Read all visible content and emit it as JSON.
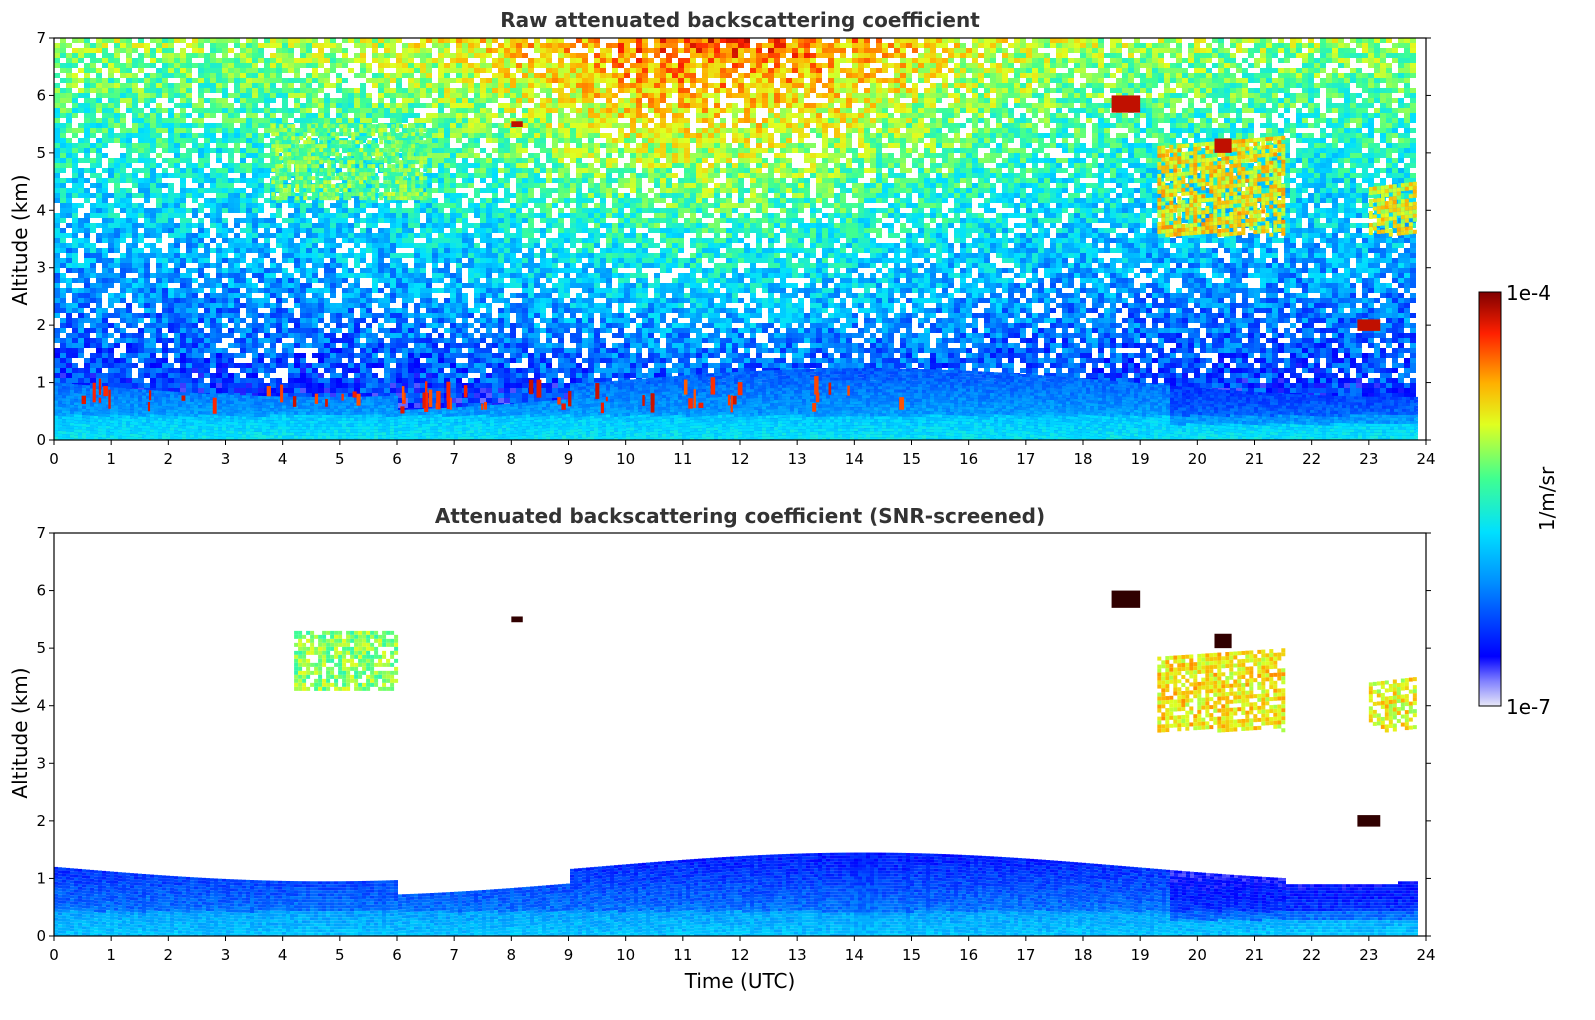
{
  "chart_data": [
    {
      "type": "heatmap",
      "title": "Raw attenuated backscattering coefficient",
      "xlabel": "",
      "ylabel": "Altitude (km)",
      "xlim": [
        0,
        24
      ],
      "ylim": [
        0,
        7
      ],
      "xticks": [
        0,
        1,
        2,
        3,
        4,
        5,
        6,
        7,
        8,
        9,
        10,
        11,
        12,
        13,
        14,
        15,
        16,
        17,
        18,
        19,
        20,
        21,
        22,
        23,
        24
      ],
      "yticks": [
        0,
        1,
        2,
        3,
        4,
        5,
        6,
        7
      ],
      "data_extent_x": [
        0,
        23.8
      ],
      "screening": "none",
      "features": [
        {
          "kind": "boundary-layer",
          "x": [
            0,
            23.8
          ],
          "y": [
            0,
            1.0
          ],
          "level": 0.38
        },
        {
          "kind": "aerosol-layer",
          "x": [
            3.8,
            6.5
          ],
          "y": [
            4.2,
            5.5
          ],
          "level": 0.58
        },
        {
          "kind": "cirrus",
          "x": [
            19.3,
            21.5
          ],
          "y": [
            3.6,
            5.3
          ],
          "level": 0.72
        },
        {
          "kind": "cirrus",
          "x": [
            23.0,
            23.8
          ],
          "y": [
            3.6,
            4.5
          ],
          "level": 0.7
        },
        {
          "kind": "cloud",
          "x": [
            8.0,
            8.2
          ],
          "y": [
            5.45,
            5.55
          ],
          "level": 0.95
        },
        {
          "kind": "cloud",
          "x": [
            18.5,
            19.0
          ],
          "y": [
            5.7,
            6.0
          ],
          "level": 0.95
        },
        {
          "kind": "cloud",
          "x": [
            20.3,
            20.6
          ],
          "y": [
            5.0,
            5.25
          ],
          "level": 0.95
        },
        {
          "kind": "cloud",
          "x": [
            22.8,
            23.2
          ],
          "y": [
            1.9,
            2.1
          ],
          "level": 0.95
        },
        {
          "kind": "low-cloud",
          "x": [
            0.2,
            14.8
          ],
          "y": [
            0.4,
            1.5
          ],
          "level": 0.95
        }
      ]
    },
    {
      "type": "heatmap",
      "title": "Attenuated backscattering coefficient (SNR-screened)",
      "xlabel": "Time (UTC)",
      "ylabel": "Altitude (km)",
      "xlim": [
        0,
        24
      ],
      "ylim": [
        0,
        7
      ],
      "xticks": [
        0,
        1,
        2,
        3,
        4,
        5,
        6,
        7,
        8,
        9,
        10,
        11,
        12,
        13,
        14,
        15,
        16,
        17,
        18,
        19,
        20,
        21,
        22,
        23,
        24
      ],
      "yticks": [
        0,
        1,
        2,
        3,
        4,
        5,
        6,
        7
      ],
      "data_extent_x": [
        0,
        23.8
      ],
      "screening": "SNR",
      "features": [
        {
          "kind": "boundary-layer",
          "x": [
            0,
            23.8
          ],
          "y": [
            0,
            1.2
          ],
          "level": 0.32
        },
        {
          "kind": "aerosol-layer",
          "x": [
            4.2,
            6.0
          ],
          "y": [
            4.3,
            5.3
          ],
          "level": 0.6
        },
        {
          "kind": "cirrus",
          "x": [
            19.3,
            21.5
          ],
          "y": [
            3.6,
            5.0
          ],
          "level": 0.72
        },
        {
          "kind": "cirrus",
          "x": [
            23.0,
            23.8
          ],
          "y": [
            3.6,
            4.5
          ],
          "level": 0.7
        },
        {
          "kind": "cloud",
          "x": [
            8.0,
            8.2
          ],
          "y": [
            5.45,
            5.55
          ],
          "level": 0.95
        },
        {
          "kind": "cloud",
          "x": [
            18.5,
            19.0
          ],
          "y": [
            5.7,
            6.0
          ],
          "level": 0.95
        },
        {
          "kind": "cloud",
          "x": [
            20.3,
            20.6
          ],
          "y": [
            5.0,
            5.25
          ],
          "level": 0.95
        },
        {
          "kind": "cloud",
          "x": [
            22.8,
            23.2
          ],
          "y": [
            1.9,
            2.1
          ],
          "level": 0.95
        }
      ]
    }
  ],
  "colorbar": {
    "label": "1/m/sr",
    "min_label": "1e-7",
    "max_label": "1e-4",
    "colormap": "jet",
    "scale": "log",
    "range": [
      1e-07,
      0.0001
    ]
  }
}
